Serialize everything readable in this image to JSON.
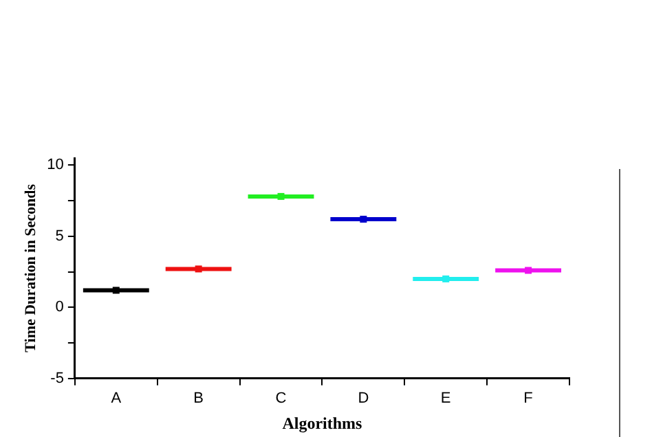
{
  "chart_data": {
    "type": "box",
    "xlabel": "Algorithms",
    "ylabel": "Time Duration in Seconds",
    "categories": [
      "A",
      "B",
      "C",
      "D",
      "E",
      "F"
    ],
    "boxes": [
      {
        "low": 1.2,
        "q1": 1.2,
        "median": 1.2,
        "q3": 1.2,
        "high": 1.2,
        "mean": 1.2
      },
      {
        "low": 2.7,
        "q1": 2.7,
        "median": 2.7,
        "q3": 2.7,
        "high": 2.7,
        "mean": 2.7
      },
      {
        "low": 7.8,
        "q1": 7.8,
        "median": 7.8,
        "q3": 7.8,
        "high": 7.8,
        "mean": 7.8
      },
      {
        "low": 6.2,
        "q1": 6.2,
        "median": 6.2,
        "q3": 6.2,
        "high": 6.2,
        "mean": 6.2
      },
      {
        "low": 2.0,
        "q1": 2.0,
        "median": 2.0,
        "q3": 2.0,
        "high": 2.0,
        "mean": 2.0
      },
      {
        "low": 2.6,
        "q1": 2.6,
        "median": 2.6,
        "q3": 2.6,
        "high": 2.6,
        "mean": 2.6
      }
    ],
    "colors": [
      "#000000",
      "#ee1111",
      "#22ee22",
      "#0000cc",
      "#22eeee",
      "#ee11ee"
    ],
    "ylim": [
      -5,
      10.5
    ],
    "yticks": [
      -5,
      {
        "value": -2.5,
        "label": null
      },
      0,
      {
        "value": 2.5,
        "label": null
      },
      5,
      {
        "value": 7.5,
        "label": null
      },
      10
    ],
    "grid": false,
    "legend": false
  }
}
